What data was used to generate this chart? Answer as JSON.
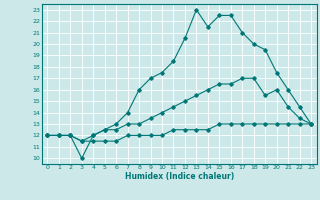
{
  "title": "",
  "xlabel": "Humidex (Indice chaleur)",
  "ylabel": "",
  "xlim": [
    -0.5,
    23.5
  ],
  "ylim": [
    9.5,
    23.5
  ],
  "xticks": [
    0,
    1,
    2,
    3,
    4,
    5,
    6,
    7,
    8,
    9,
    10,
    11,
    12,
    13,
    14,
    15,
    16,
    17,
    18,
    19,
    20,
    21,
    22,
    23
  ],
  "yticks": [
    10,
    11,
    12,
    13,
    14,
    15,
    16,
    17,
    18,
    19,
    20,
    21,
    22,
    23
  ],
  "bg_color": "#cce8e8",
  "grid_color": "#aad4d4",
  "line_color": "#007777",
  "line1_x": [
    0,
    1,
    2,
    3,
    4,
    5,
    6,
    7,
    8,
    9,
    10,
    11,
    12,
    13,
    14,
    15,
    16,
    17,
    18,
    19,
    20,
    21,
    22,
    23
  ],
  "line1_y": [
    12,
    12,
    12,
    10,
    12,
    12.5,
    13,
    14,
    16,
    17,
    17.5,
    18.5,
    20.5,
    23,
    21.5,
    22.5,
    22.5,
    21,
    20,
    19.5,
    17.5,
    16,
    14.5,
    13
  ],
  "line2_x": [
    0,
    1,
    2,
    3,
    4,
    5,
    6,
    7,
    8,
    9,
    10,
    11,
    12,
    13,
    14,
    15,
    16,
    17,
    18,
    19,
    20,
    21,
    22,
    23
  ],
  "line2_y": [
    12,
    12,
    12,
    11.5,
    12,
    12.5,
    12.5,
    13,
    13,
    13.5,
    14,
    14.5,
    15,
    15.5,
    16,
    16.5,
    16.5,
    17,
    17,
    15.5,
    16,
    14.5,
    13.5,
    13
  ],
  "line3_x": [
    0,
    1,
    2,
    3,
    4,
    5,
    6,
    7,
    8,
    9,
    10,
    11,
    12,
    13,
    14,
    15,
    16,
    17,
    18,
    19,
    20,
    21,
    22,
    23
  ],
  "line3_y": [
    12,
    12,
    12,
    11.5,
    11.5,
    11.5,
    11.5,
    12,
    12,
    12,
    12,
    12.5,
    12.5,
    12.5,
    12.5,
    13,
    13,
    13,
    13,
    13,
    13,
    13,
    13,
    13
  ]
}
